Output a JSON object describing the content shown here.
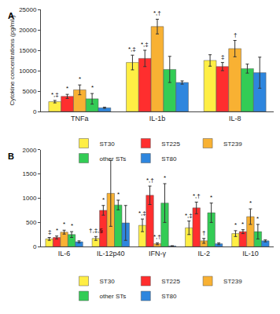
{
  "chart_data": [
    {
      "type": "bar",
      "label": "A",
      "y_label": "Cytokine concentrations (pg/mL)",
      "categories": [
        "TNFa",
        "IL-1b",
        "IL-8"
      ],
      "ylim": [
        0,
        25000
      ],
      "yticks": [
        0,
        5000,
        10000,
        15000,
        20000,
        25000
      ],
      "grid": false,
      "legend": "bottom",
      "series": [
        {
          "name": "ST30",
          "color": "#FFEE44",
          "values": [
            2400,
            12000,
            12500
          ],
          "errors": [
            300,
            1800,
            1400
          ],
          "annotations": [
            "*,‡",
            "*,‡",
            null
          ]
        },
        {
          "name": "ST225",
          "color": "#FF2E2E",
          "values": [
            3700,
            13000,
            11000
          ],
          "errors": [
            500,
            2000,
            1000
          ],
          "annotations": [
            "*",
            "*,‡",
            "‡"
          ]
        },
        {
          "name": "ST239",
          "color": "#F8B133",
          "values": [
            5300,
            20800,
            15400
          ],
          "errors": [
            1200,
            1800,
            2000
          ],
          "annotations": [
            "*",
            "*,†",
            "†"
          ]
        },
        {
          "name": "other STs",
          "color": "#33CC55",
          "values": [
            3100,
            10300,
            10500
          ],
          "errors": [
            1300,
            3200,
            1100
          ],
          "annotations": [
            "*",
            null,
            null
          ]
        },
        {
          "name": "ST80",
          "color": "#2E86DE",
          "values": [
            900,
            7100,
            9500
          ],
          "errors": [
            150,
            400,
            3800
          ],
          "annotations": [
            null,
            null,
            null
          ]
        }
      ]
    },
    {
      "type": "bar",
      "label": "B",
      "categories": [
        "IL-6",
        "IL-12p40",
        "IFN-γ",
        "IL-2",
        "IL-10"
      ],
      "ylim": [
        0,
        2000
      ],
      "yticks": [
        0,
        500,
        1000,
        1500,
        2000
      ],
      "grid": false,
      "legend": "bottom",
      "series": [
        {
          "name": "ST30",
          "color": "#FFEE44",
          "values": [
            160,
            170,
            440,
            390,
            270
          ],
          "errors": [
            30,
            40,
            130,
            140,
            60
          ],
          "annotations": [
            "‡",
            "†,‡,§",
            "*,‡",
            "*,‡",
            "*"
          ]
        },
        {
          "name": "ST225",
          "color": "#FF2E2E",
          "values": [
            190,
            750,
            1060,
            800,
            310
          ],
          "errors": [
            30,
            100,
            190,
            120,
            40
          ],
          "annotations": [
            "*",
            "*",
            "*,†",
            "*,†",
            "*"
          ]
        },
        {
          "name": "ST239",
          "color": "#F8B133",
          "values": [
            300,
            1100,
            60,
            120,
            620
          ],
          "errors": [
            40,
            680,
            20,
            50,
            160
          ],
          "annotations": [
            "*",
            null,
            "*,†",
            "†",
            "*"
          ]
        },
        {
          "name": "other STs",
          "color": "#33CC55",
          "values": [
            250,
            860,
            900,
            700,
            310
          ],
          "errors": [
            60,
            100,
            400,
            200,
            150
          ],
          "annotations": [
            "*",
            "*",
            "*",
            "*",
            "*"
          ]
        },
        {
          "name": "ST80",
          "color": "#2E86DE",
          "values": [
            100,
            490,
            15,
            60,
            120
          ],
          "errors": [
            20,
            360,
            5,
            20,
            20
          ],
          "annotations": [
            null,
            null,
            null,
            null,
            null
          ]
        }
      ]
    }
  ]
}
